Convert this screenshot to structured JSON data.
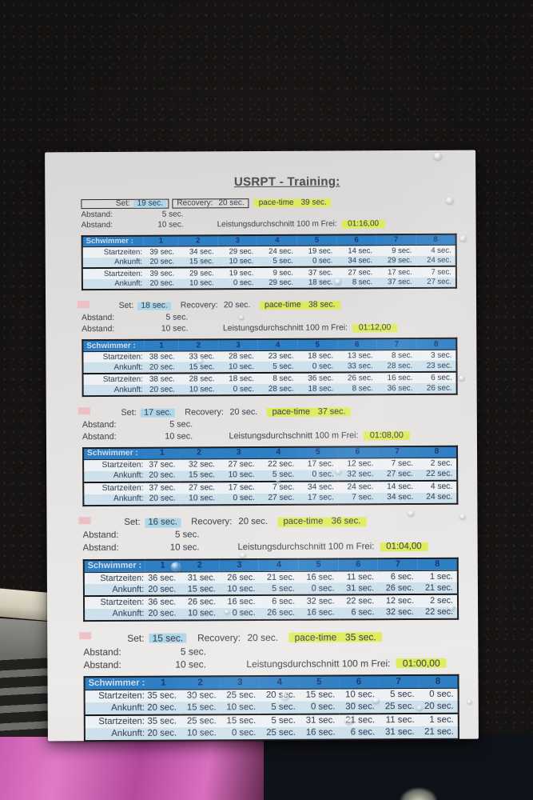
{
  "sheet": {
    "title": "USRPT - Training:",
    "labels": {
      "set": "Set:",
      "recovery": "Recovery:",
      "pace": "pace-time",
      "abstand": "Abstand:",
      "abstand1_value": "5 sec.",
      "abstand2_value": "10 sec.",
      "leistung": "Leistungsdurchschnitt 100 m Frei:",
      "schwimmer": "Schwimmer :"
    },
    "columns": [
      "1",
      "2",
      "3",
      "4",
      "5",
      "6",
      "7",
      "8"
    ],
    "blocks": [
      {
        "set": "19 sec.",
        "recovery": "20 sec.",
        "pace": "39 sec.",
        "leistung": "01:16,00",
        "boxed": true,
        "mark": false,
        "rows": [
          {
            "label": "Startzeiten:",
            "values": [
              "39 sec.",
              "34 sec.",
              "29 sec.",
              "24 sec.",
              "19 sec.",
              "14 sec.",
              "9 sec.",
              "4 sec."
            ]
          },
          {
            "label": "Ankunft:",
            "values": [
              "20 sec.",
              "15 sec.",
              "10 sec.",
              "5 sec.",
              "0 sec.",
              "34 sec.",
              "29 sec.",
              "24 sec."
            ]
          },
          {
            "label": "Startzeiten:",
            "values": [
              "39 sec.",
              "29 sec.",
              "19 sec.",
              "9 sec.",
              "37 sec.",
              "27 sec.",
              "17 sec.",
              "7 sec."
            ]
          },
          {
            "label": "Ankunft:",
            "values": [
              "20 sec.",
              "10 sec.",
              "0 sec.",
              "29 sec.",
              "18 sec.",
              "8 sec.",
              "37 sec.",
              "27 sec."
            ]
          }
        ]
      },
      {
        "set": "18 sec.",
        "recovery": "20 sec.",
        "pace": "38 sec.",
        "leistung": "01:12,00",
        "boxed": false,
        "mark": true,
        "rows": [
          {
            "label": "Startzeiten:",
            "values": [
              "38 sec.",
              "33 sec.",
              "28 sec.",
              "23 sec.",
              "18 sec.",
              "13 sec.",
              "8 sec.",
              "3 sec."
            ]
          },
          {
            "label": "Ankunft:",
            "values": [
              "20 sec.",
              "15 sec.",
              "10 sec.",
              "5 sec.",
              "0 sec.",
              "33 sec.",
              "28 sec.",
              "23 sec."
            ]
          },
          {
            "label": "Startzeiten:",
            "values": [
              "38 sec.",
              "28 sec.",
              "18 sec.",
              "8 sec.",
              "36 sec.",
              "26 sec.",
              "16 sec.",
              "6 sec."
            ]
          },
          {
            "label": "Ankunft:",
            "values": [
              "20 sec.",
              "10 sec.",
              "0 sec.",
              "28 sec.",
              "18 sec.",
              "8 sec.",
              "36 sec.",
              "26 sec."
            ]
          }
        ]
      },
      {
        "set": "17 sec.",
        "recovery": "20 sec.",
        "pace": "37 sec.",
        "leistung": "01:08,00",
        "boxed": false,
        "mark": true,
        "rows": [
          {
            "label": "Startzeiten:",
            "values": [
              "37 sec.",
              "32 sec.",
              "27 sec.",
              "22 sec.",
              "17 sec.",
              "12 sec.",
              "7 sec.",
              "2 sec."
            ]
          },
          {
            "label": "Ankunft:",
            "values": [
              "20 sec.",
              "15 sec.",
              "10 sec.",
              "5 sec.",
              "0 sec.",
              "32 sec.",
              "27 sec.",
              "22 sec."
            ]
          },
          {
            "label": "Startzeiten:",
            "values": [
              "37 sec.",
              "27 sec.",
              "17 sec.",
              "7 sec.",
              "34 sec.",
              "24 sec.",
              "14 sec.",
              "4 sec."
            ]
          },
          {
            "label": "Ankunft:",
            "values": [
              "20 sec.",
              "10 sec.",
              "0 sec.",
              "27 sec.",
              "17 sec.",
              "7 sec.",
              "34 sec.",
              "24 sec."
            ]
          }
        ]
      },
      {
        "set": "16 sec.",
        "recovery": "20 sec.",
        "pace": "36 sec.",
        "leistung": "01:04,00",
        "boxed": false,
        "mark": true,
        "rows": [
          {
            "label": "Startzeiten:",
            "values": [
              "36 sec.",
              "31 sec.",
              "26 sec.",
              "21 sec.",
              "16 sec.",
              "11 sec.",
              "6 sec.",
              "1 sec."
            ]
          },
          {
            "label": "Ankunft:",
            "values": [
              "20 sec.",
              "15 sec.",
              "10 sec.",
              "5 sec.",
              "0 sec.",
              "31 sec.",
              "26 sec.",
              "21 sec."
            ]
          },
          {
            "label": "Startzeiten:",
            "values": [
              "36 sec.",
              "26 sec.",
              "16 sec.",
              "6 sec.",
              "32 sec.",
              "22 sec.",
              "12 sec.",
              "2 sec."
            ]
          },
          {
            "label": "Ankunft:",
            "values": [
              "20 sec.",
              "10 sec.",
              "0 sec.",
              "26 sec.",
              "16 sec.",
              "6 sec.",
              "32 sec.",
              "22 sec."
            ]
          }
        ]
      },
      {
        "set": "15 sec.",
        "recovery": "20 sec.",
        "pace": "35 sec.",
        "leistung": "01:00,00",
        "boxed": false,
        "mark": true,
        "rows": [
          {
            "label": "Startzeiten:",
            "values": [
              "35 sec.",
              "30 sec.",
              "25 sec.",
              "20 sec.",
              "15 sec.",
              "10 sec.",
              "5 sec.",
              "0 sec."
            ]
          },
          {
            "label": "Ankunft:",
            "values": [
              "20 sec.",
              "15 sec.",
              "10 sec.",
              "5 sec.",
              "0 sec.",
              "30 sec.",
              "25 sec.",
              "20 sec."
            ]
          },
          {
            "label": "Startzeiten:",
            "values": [
              "35 sec.",
              "25 sec.",
              "15 sec.",
              "5 sec.",
              "31 sec.",
              "21 sec.",
              "11 sec.",
              "1 sec."
            ]
          },
          {
            "label": "Ankunft:",
            "values": [
              "20 sec.",
              "10 sec.",
              "0 sec.",
              "25 sec.",
              "16 sec.",
              "6 sec.",
              "31 sec.",
              "21 sec."
            ]
          }
        ]
      }
    ]
  },
  "colors": {
    "table_header_blue": "#2e7ec4",
    "row_alt_blue": "#cde0ec",
    "highlight_blue": "#afd5e8",
    "highlight_yellow": "#deec49",
    "pink_mark": "#eeb6be",
    "paper": "#e7e5e3",
    "background": "#1b1817",
    "pink_fabric": "#c75ab0"
  }
}
